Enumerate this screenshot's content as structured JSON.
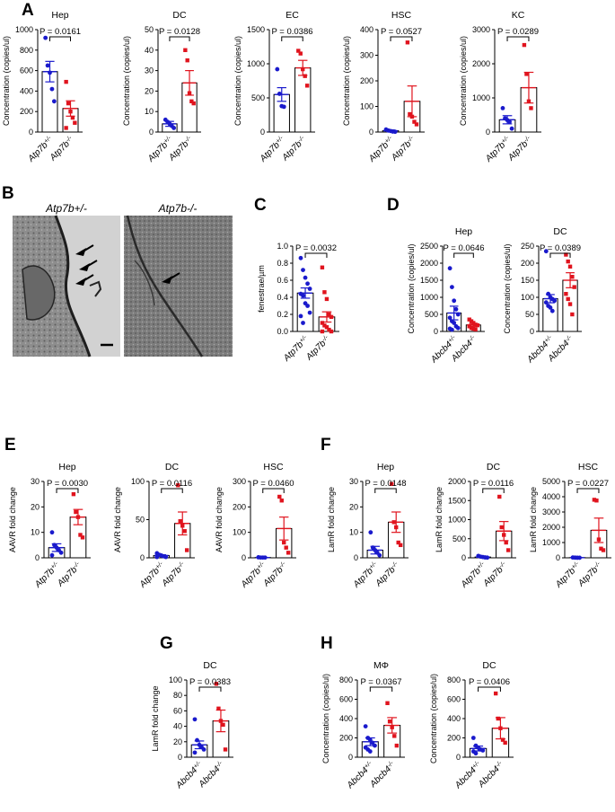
{
  "colors": {
    "control": "#1a1acc",
    "mutant": "#e0141e",
    "bar": "#000000"
  },
  "panel_letters": [
    "A",
    "B",
    "C",
    "D",
    "E",
    "F",
    "G",
    "H"
  ],
  "micrographs": {
    "left_label": "Atp7b+/-",
    "right_label": "Atp7b-/-"
  },
  "chart_data": [
    {
      "id": "A1",
      "panel": "A",
      "type": "bar",
      "title": "Hep",
      "ylabel": "Concentration (copies/ul)",
      "ylim": [
        0,
        1000
      ],
      "yticks": [
        0,
        200,
        400,
        600,
        800,
        1000
      ],
      "pvalue": "P = 0.0161",
      "categories": [
        "Atp7b+/-",
        "Atp7b-/-"
      ],
      "means": [
        590,
        230
      ],
      "sem": [
        100,
        75
      ],
      "points": [
        [
          920,
          650,
          580,
          420,
          300
        ],
        [
          490,
          280,
          200,
          140,
          90,
          40
        ]
      ]
    },
    {
      "id": "A2",
      "panel": "A",
      "type": "bar",
      "title": "DC",
      "ylabel": "Concentration (copies/ul)",
      "ylim": [
        0,
        50
      ],
      "yticks": [
        0,
        10,
        20,
        30,
        40,
        50
      ],
      "pvalue": "P = 0.0128",
      "categories": [
        "Atp7b+/-",
        "Atp7b-/-"
      ],
      "means": [
        4,
        24
      ],
      "sem": [
        1.2,
        6
      ],
      "points": [
        [
          6,
          5,
          4,
          3,
          2
        ],
        [
          40,
          35,
          19,
          15,
          14
        ]
      ]
    },
    {
      "id": "A3",
      "panel": "A",
      "type": "bar",
      "title": "EC",
      "ylabel": "Concentration (copies/ul)",
      "ylim": [
        0,
        1500
      ],
      "yticks": [
        0,
        500,
        1000,
        1500
      ],
      "pvalue": "P = 0.0386",
      "categories": [
        "Atp7b+/-",
        "Atp7b-/-"
      ],
      "means": [
        550,
        940
      ],
      "sem": [
        100,
        110
      ],
      "points": [
        [
          920,
          560,
          380,
          370
        ],
        [
          1190,
          1150,
          920,
          820,
          680
        ]
      ]
    },
    {
      "id": "A4",
      "panel": "A",
      "type": "bar",
      "title": "HSC",
      "ylabel": "Concentration (copies/ul)",
      "ylim": [
        0,
        400
      ],
      "yticks": [
        0,
        100,
        200,
        300,
        400
      ],
      "pvalue": "P = 0.0527",
      "categories": [
        "Atp7b+/-",
        "Atp7b-/-"
      ],
      "means": [
        5,
        120
      ],
      "sem": [
        3,
        60
      ],
      "points": [
        [
          10,
          6,
          4,
          2,
          1
        ],
        [
          350,
          70,
          60,
          40,
          30
        ]
      ]
    },
    {
      "id": "A5",
      "panel": "A",
      "type": "bar",
      "title": "KC",
      "ylabel": "Concentration (copies/ul)",
      "ylim": [
        0,
        3000
      ],
      "yticks": [
        0,
        1000,
        2000,
        3000
      ],
      "pvalue": "P = 0.0289",
      "categories": [
        "Atp7b+/-",
        "Atp7b-/-"
      ],
      "means": [
        360,
        1300
      ],
      "sem": [
        120,
        450
      ],
      "points": [
        [
          700,
          400,
          350,
          300,
          100
        ],
        [
          2550,
          1700,
          900,
          700
        ]
      ]
    },
    {
      "id": "C",
      "panel": "C",
      "type": "bar",
      "title": "",
      "ylabel": "fenestrae/µm",
      "ylim": [
        0,
        1.0
      ],
      "yticks": [
        0.0,
        0.2,
        0.4,
        0.6,
        0.8,
        1.0
      ],
      "pvalue": "P = 0.0032",
      "categories": [
        "Atp7b+/-",
        "Atp7b-/-"
      ],
      "means": [
        0.45,
        0.17
      ],
      "sem": [
        0.06,
        0.06
      ],
      "points": [
        [
          0.86,
          0.72,
          0.63,
          0.56,
          0.5,
          0.44,
          0.42,
          0.33,
          0.3,
          0.22,
          0.18,
          0.1
        ],
        [
          0.75,
          0.46,
          0.38,
          0.2,
          0.17,
          0.1,
          0.07,
          0.05,
          0.02,
          0.0,
          0.0
        ]
      ]
    },
    {
      "id": "D1",
      "panel": "D",
      "type": "bar",
      "title": "Hep",
      "ylabel": "Concentration (copies/ul)",
      "ylim": [
        0,
        2500
      ],
      "yticks": [
        0,
        500,
        1000,
        1500,
        2000,
        2500
      ],
      "pvalue": "P = 0.0646",
      "categories": [
        "Abcb4+/-",
        "Abcb4-/-"
      ],
      "means": [
        540,
        190
      ],
      "sem": [
        200,
        40
      ],
      "points": [
        [
          1850,
          1300,
          900,
          650,
          500,
          400,
          300,
          250,
          150,
          100,
          80,
          50
        ],
        [
          350,
          300,
          250,
          200,
          180,
          150,
          100,
          80,
          60
        ]
      ]
    },
    {
      "id": "D2",
      "panel": "D",
      "type": "bar",
      "title": "DC",
      "ylabel": "Concentration (copies/ul)",
      "ylim": [
        0,
        250
      ],
      "yticks": [
        0,
        50,
        100,
        150,
        200,
        250
      ],
      "pvalue": "P = 0.0389",
      "categories": [
        "Abcb4+/-",
        "Abcb4-/-"
      ],
      "means": [
        96,
        150
      ],
      "sem": [
        12,
        22
      ],
      "points": [
        [
          235,
          110,
          100,
          95,
          90,
          85,
          75,
          70,
          60
        ],
        [
          225,
          205,
          190,
          160,
          130,
          110,
          95,
          80,
          50
        ]
      ]
    },
    {
      "id": "E1",
      "panel": "E",
      "type": "bar",
      "title": "Hep",
      "ylabel": "AAVR fold change",
      "ylim": [
        0,
        30
      ],
      "yticks": [
        0,
        10,
        20,
        30
      ],
      "pvalue": "P = 0.0030",
      "categories": [
        "Atp7b+/-",
        "Atp7b-/-"
      ],
      "means": [
        4,
        16
      ],
      "sem": [
        1.5,
        3
      ],
      "points": [
        [
          10,
          5,
          4,
          3,
          2,
          1
        ],
        [
          25,
          18,
          16,
          9,
          8
        ]
      ]
    },
    {
      "id": "E2",
      "panel": "E",
      "type": "bar",
      "title": "DC",
      "ylabel": "AAVR fold change",
      "ylim": [
        0,
        100
      ],
      "yticks": [
        0,
        50,
        100
      ],
      "pvalue": "P = 0.0116",
      "categories": [
        "Atp7b+/-",
        "Atp7b-/-"
      ],
      "means": [
        3,
        45
      ],
      "sem": [
        1,
        15
      ],
      "points": [
        [
          6,
          4,
          3,
          2,
          1,
          1
        ],
        [
          95,
          48,
          42,
          35,
          10
        ]
      ]
    },
    {
      "id": "E3",
      "panel": "E",
      "type": "bar",
      "title": "HSC",
      "ylabel": "AAVR fold change",
      "ylim": [
        0,
        300
      ],
      "yticks": [
        0,
        100,
        200,
        300
      ],
      "pvalue": "P = 0.0460",
      "categories": [
        "Atp7b+/-",
        "Atp7b-/-"
      ],
      "means": [
        1,
        115
      ],
      "sem": [
        0.5,
        45
      ],
      "points": [
        [
          2,
          1,
          1,
          1
        ],
        [
          240,
          225,
          60,
          40,
          20
        ]
      ]
    },
    {
      "id": "F1",
      "panel": "F",
      "type": "bar",
      "title": "Hep",
      "ylabel": "LamR fold change",
      "ylim": [
        0,
        30
      ],
      "yticks": [
        0,
        10,
        20,
        30
      ],
      "pvalue": "P = 0.0148",
      "categories": [
        "Atp7b+/-",
        "Atp7b-/-"
      ],
      "means": [
        3,
        14
      ],
      "sem": [
        1.5,
        4
      ],
      "points": [
        [
          10,
          4,
          3,
          2,
          1
        ],
        [
          29,
          14,
          12,
          6,
          5
        ]
      ]
    },
    {
      "id": "F2",
      "panel": "F",
      "type": "bar",
      "title": "DC",
      "ylabel": "LamR fold change",
      "ylim": [
        0,
        2000
      ],
      "yticks": [
        0,
        500,
        1000,
        1500,
        2000
      ],
      "pvalue": "P = 0.0116",
      "categories": [
        "Atp7b+/-",
        "Atp7b-/-"
      ],
      "means": [
        20,
        700
      ],
      "sem": [
        10,
        250
      ],
      "points": [
        [
          50,
          30,
          20,
          10,
          5
        ],
        [
          1600,
          800,
          600,
          400,
          200
        ]
      ]
    },
    {
      "id": "F3",
      "panel": "F",
      "type": "bar",
      "title": "HSC",
      "ylabel": "LamR fold change",
      "ylim": [
        0,
        5000
      ],
      "yticks": [
        0,
        1000,
        2000,
        3000,
        4000,
        5000
      ],
      "pvalue": "P = 0.0227",
      "categories": [
        "Atp7b+/-",
        "Atp7b-/-"
      ],
      "means": [
        10,
        1800
      ],
      "sem": [
        5,
        800
      ],
      "points": [
        [
          20,
          10,
          5,
          5
        ],
        [
          3800,
          3750,
          1200,
          600,
          500
        ]
      ]
    },
    {
      "id": "G",
      "panel": "G",
      "type": "bar",
      "title": "DC",
      "ylabel": "LamR fold change",
      "ylim": [
        0,
        100
      ],
      "yticks": [
        0,
        20,
        40,
        60,
        80,
        100
      ],
      "pvalue": "P = 0.0383",
      "categories": [
        "Abcb4+/-",
        "Abcb4-/-"
      ],
      "means": [
        16,
        47
      ],
      "sem": [
        5,
        14
      ],
      "points": [
        [
          49,
          22,
          16,
          13,
          10,
          6
        ],
        [
          95,
          63,
          47,
          42,
          10
        ]
      ]
    },
    {
      "id": "H1",
      "panel": "H",
      "type": "bar",
      "title": "MΦ",
      "ylabel": "Concentration (copies/ul)",
      "ylim": [
        0,
        800
      ],
      "yticks": [
        0,
        200,
        400,
        600,
        800
      ],
      "pvalue": "P = 0.0367",
      "categories": [
        "Abcb4+/-",
        "Abcb4-/-"
      ],
      "means": [
        160,
        330
      ],
      "sem": [
        40,
        80
      ],
      "points": [
        [
          320,
          200,
          180,
          150,
          120,
          100,
          80,
          60
        ],
        [
          560,
          370,
          310,
          220,
          120
        ]
      ]
    },
    {
      "id": "H2",
      "panel": "H",
      "type": "bar",
      "title": "DC",
      "ylabel": "Concentration (copies/ul)",
      "ylim": [
        0,
        800
      ],
      "yticks": [
        0,
        200,
        400,
        600,
        800
      ],
      "pvalue": "P = 0.0406",
      "categories": [
        "Abcb4+/-",
        "Abcb4-/-"
      ],
      "means": [
        90,
        300
      ],
      "sem": [
        25,
        110
      ],
      "points": [
        [
          200,
          120,
          100,
          80,
          70,
          60,
          40
        ],
        [
          660,
          400,
          300,
          180,
          150
        ]
      ]
    }
  ]
}
